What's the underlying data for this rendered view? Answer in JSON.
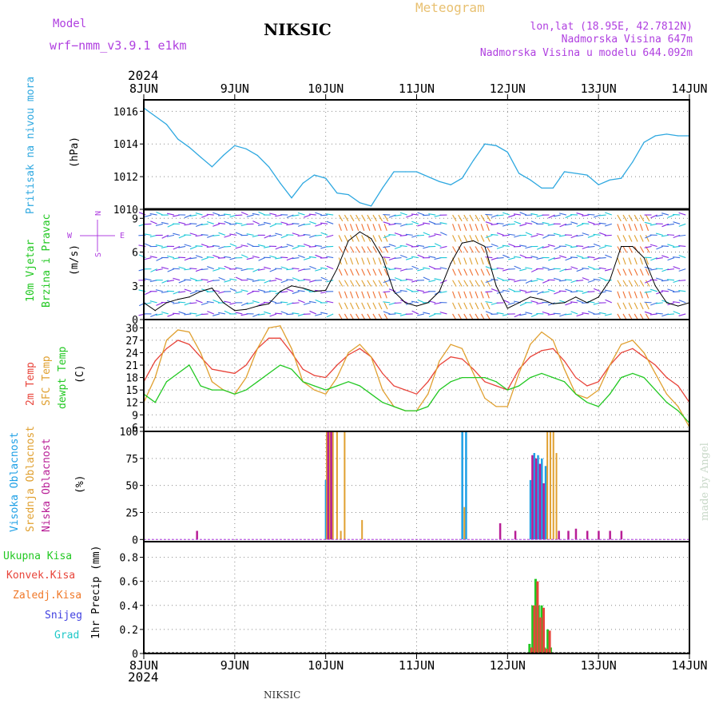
{
  "header": {
    "model_label": "Model",
    "model_name": "wrf−nmm_v3.9.1  e1km",
    "station": "NIKSIC",
    "meteogram": "Meteogram",
    "lonlat": "lon,lat (18.95E, 42.7812N)",
    "altitude": "Nadmorska Visina 647m",
    "model_altitude": "Nadmorska Visina u modelu 644.092m",
    "year_top": "2024",
    "year_bottom": "2024",
    "footer_station": "NIKSIC",
    "watermark": "made by Angel"
  },
  "colors": {
    "pressure": "#2ea8e0",
    "temp2m": "#e8443a",
    "sfc": "#e0a030",
    "dewpt": "#22c822",
    "high_cloud": "#1ea0e6",
    "mid_cloud": "#e0a030",
    "low_cloud": "#b81e96",
    "total_precip": "#22c822",
    "conv_precip": "#e8443a",
    "frz_precip": "#f07828",
    "snow": "#4040e0",
    "graupel": "#20c8c8",
    "wind_label": "#22c822",
    "wind_dir": "#b040e0"
  },
  "x_axis": {
    "start": "2024-06-08T00:00",
    "end": "2024-06-14T00:00",
    "labels": [
      "8JUN",
      "9JUN",
      "10JUN",
      "11JUN",
      "12JUN",
      "13JUN",
      "14JUN"
    ]
  },
  "panels": {
    "pressure": {
      "label_main": "Pritisak na nivou mora",
      "unit": "(hPa)",
      "ticks": [
        "1010",
        "1012",
        "1014",
        "1016"
      ]
    },
    "wind": {
      "label_a": "10m Vjetar",
      "label_b": "Brzina i Pravac",
      "unit": "(m/s)",
      "dir_n": "N",
      "dir_w": "W",
      "dir_e": "E",
      "dir_s": "S",
      "ticks": [
        "0",
        "3",
        "6",
        "9"
      ]
    },
    "temp": {
      "label_2m": "2m Temp",
      "label_sfc": "SFC Temp",
      "label_dew": "dewpt Temp",
      "unit": "(C)",
      "ticks": [
        "6",
        "9",
        "12",
        "15",
        "18",
        "21",
        "24",
        "27",
        "30"
      ]
    },
    "cloud": {
      "label_high": "Visoka Oblacnost",
      "label_mid": "Srednja Oblacnost",
      "label_low": "Niska Oblacnost",
      "unit": "(%)",
      "ticks": [
        "0",
        "25",
        "50",
        "75",
        "100"
      ]
    },
    "precip": {
      "label_total": "Ukupna Kisa",
      "label_conv": "Konvek.Kisa",
      "label_frz": "Zaledj.Kisa",
      "label_snow": "Snijeg",
      "label_grad": "Grad",
      "unit": "1hr Precip (mm)",
      "ticks": [
        "0",
        "0.2",
        "0.4",
        "0.6",
        "0.8"
      ]
    }
  },
  "chart_data": [
    {
      "type": "line",
      "ylabel": "Pritisak na nivou mora (hPa)",
      "ylim": [
        1010,
        1016.7
      ],
      "x_unit": "hours since 2024-06-08 00:00",
      "series": [
        {
          "name": "Pritisak na nivou mora",
          "x": [
            0,
            3,
            6,
            9,
            12,
            15,
            18,
            21,
            24,
            27,
            30,
            33,
            36,
            39,
            42,
            45,
            48,
            51,
            54,
            57,
            60,
            63,
            66,
            69,
            72,
            75,
            78,
            81,
            84,
            87,
            90,
            93,
            96,
            99,
            102,
            105,
            108,
            111,
            114,
            117,
            120,
            123,
            126,
            129,
            132,
            135,
            138,
            141,
            144
          ],
          "y": [
            1016.2,
            1015.7,
            1015.2,
            1014.3,
            1013.8,
            1013.2,
            1012.6,
            1013.3,
            1013.9,
            1013.7,
            1013.3,
            1012.6,
            1011.6,
            1010.7,
            1011.6,
            1012.1,
            1011.9,
            1011.0,
            1010.9,
            1010.4,
            1010.2,
            1011.3,
            1012.3,
            1012.3,
            1012.3,
            1012.0,
            1011.7,
            1011.5,
            1011.9,
            1013.0,
            1014.0,
            1013.9,
            1013.5,
            1012.2,
            1011.8,
            1011.3,
            1011.3,
            1012.3,
            1012.2,
            1012.1,
            1011.5,
            1011.8,
            1011.9,
            1012.9,
            1014.1,
            1014.5,
            1014.6,
            1014.5,
            1014.5
          ]
        }
      ]
    },
    {
      "type": "line",
      "ylabel": "10m Vjetar Brzina i Pravac (m/s)",
      "ylim": [
        0,
        9.8
      ],
      "x_unit": "hours since 2024-06-08 00:00",
      "series": [
        {
          "name": "10m Vjetar",
          "x": [
            0,
            3,
            6,
            9,
            12,
            15,
            18,
            21,
            24,
            27,
            30,
            33,
            36,
            39,
            42,
            45,
            48,
            51,
            54,
            57,
            60,
            63,
            66,
            69,
            72,
            75,
            78,
            81,
            84,
            87,
            90,
            93,
            96,
            99,
            102,
            105,
            108,
            111,
            114,
            117,
            120,
            123,
            126,
            129,
            132,
            135,
            138,
            141,
            144
          ],
          "y": [
            1.5,
            0.8,
            1.5,
            1.8,
            2.0,
            2.5,
            2.8,
            1.5,
            0.8,
            0.9,
            1.2,
            1.4,
            2.5,
            3.0,
            2.8,
            2.5,
            2.6,
            4.5,
            7.0,
            7.8,
            7.2,
            5.5,
            2.5,
            1.5,
            1.2,
            1.5,
            2.5,
            5.0,
            6.8,
            7.0,
            6.5,
            3.0,
            1.0,
            1.5,
            2.0,
            1.8,
            1.4,
            1.5,
            2.0,
            1.5,
            2.0,
            3.5,
            6.5,
            6.5,
            5.5,
            3.0,
            1.5,
            1.2,
            1.5
          ]
        }
      ]
    },
    {
      "type": "line",
      "ylabel": "Temp (C)",
      "ylim": [
        5,
        32
      ],
      "x_unit": "hours since 2024-06-08 00:00",
      "series": [
        {
          "name": "2m Temp",
          "x": [
            0,
            3,
            6,
            9,
            12,
            15,
            18,
            21,
            24,
            27,
            30,
            33,
            36,
            39,
            42,
            45,
            48,
            51,
            54,
            57,
            60,
            63,
            66,
            69,
            72,
            75,
            78,
            81,
            84,
            87,
            90,
            93,
            96,
            99,
            102,
            105,
            108,
            111,
            114,
            117,
            120,
            123,
            126,
            129,
            132,
            135,
            138,
            141,
            144
          ],
          "y": [
            17,
            22,
            25,
            27,
            26,
            23,
            20,
            19.5,
            19,
            21,
            25,
            27.5,
            27.5,
            24,
            20,
            18.5,
            18,
            21,
            23.5,
            25,
            23,
            19,
            16,
            15,
            14,
            17,
            21,
            23,
            22.5,
            20,
            17,
            16,
            15,
            20,
            23,
            24.5,
            25,
            22,
            18,
            16,
            17,
            21,
            24,
            25,
            23,
            21,
            18,
            16,
            12
          ]
        },
        {
          "name": "SFC Temp",
          "x": [
            0,
            3,
            6,
            9,
            12,
            15,
            18,
            21,
            24,
            27,
            30,
            33,
            36,
            39,
            42,
            45,
            48,
            51,
            54,
            57,
            60,
            63,
            66,
            69,
            72,
            75,
            78,
            81,
            84,
            87,
            90,
            93,
            96,
            99,
            102,
            105,
            108,
            111,
            114,
            117,
            120,
            123,
            126,
            129,
            132,
            135,
            138,
            141,
            144
          ],
          "y": [
            12,
            18,
            27,
            29.5,
            29,
            24,
            17,
            15,
            14,
            18,
            25,
            30,
            30.5,
            25,
            17,
            15,
            14,
            18,
            24,
            26,
            23,
            15,
            11,
            10,
            10,
            14,
            22,
            26,
            25,
            19,
            13,
            11,
            11,
            19,
            26,
            29,
            27,
            20,
            14,
            13,
            15,
            21,
            26,
            27,
            24,
            19,
            14,
            11,
            6
          ]
        },
        {
          "name": "dewpt Temp",
          "x": [
            0,
            3,
            6,
            9,
            12,
            15,
            18,
            21,
            24,
            27,
            30,
            33,
            36,
            39,
            42,
            45,
            48,
            51,
            54,
            57,
            60,
            63,
            66,
            69,
            72,
            75,
            78,
            81,
            84,
            87,
            90,
            93,
            96,
            99,
            102,
            105,
            108,
            111,
            114,
            117,
            120,
            123,
            126,
            129,
            132,
            135,
            138,
            141,
            144
          ],
          "y": [
            14,
            12,
            17,
            19,
            21,
            16,
            15,
            15,
            14,
            15,
            17,
            19,
            21,
            20,
            17,
            16,
            15,
            16,
            17,
            16,
            14,
            12,
            11,
            10,
            10,
            11,
            15,
            17,
            18,
            18,
            18,
            17,
            15,
            16,
            18,
            19,
            18,
            17,
            14,
            12,
            11,
            14,
            18,
            19,
            18,
            15,
            12,
            10,
            7
          ]
        }
      ]
    },
    {
      "type": "bar",
      "ylabel": "Oblacnost (%)",
      "ylim": [
        -2,
        100
      ],
      "x_unit": "hours since 2024-06-08 00:00",
      "series": [
        {
          "name": "Visoka Oblacnost",
          "x": [
            48,
            48.8,
            49.6,
            84,
            85,
            102,
            103,
            104,
            105,
            106
          ],
          "y": [
            55,
            100,
            100,
            100,
            100,
            55,
            80,
            78,
            75,
            68
          ]
        },
        {
          "name": "Srednja Oblacnost",
          "x": [
            48.3,
            49.1,
            49.9,
            51,
            52,
            53,
            57.6,
            84.6,
            106.5,
            107.3,
            108.1,
            108.9
          ],
          "y": [
            100,
            100,
            100,
            100,
            8,
            100,
            18,
            30,
            100,
            100,
            100,
            80
          ]
        },
        {
          "name": "Niska Oblacnost",
          "x": [
            14,
            48.6,
            49.4,
            102.5,
            103.5,
            104.5,
            105.5,
            109.5,
            94,
            98,
            112,
            114,
            117,
            120,
            123,
            126
          ],
          "y": [
            8,
            100,
            100,
            78,
            75,
            70,
            52,
            8,
            15,
            8,
            8,
            10,
            8,
            8,
            8,
            8
          ]
        }
      ]
    },
    {
      "type": "bar",
      "ylabel": "1hr Precip (mm)",
      "ylim": [
        0,
        0.93
      ],
      "x_unit": "hours since 2024-06-08 00:00",
      "series": [
        {
          "name": "Ukupna Kisa",
          "x": [
            101.8,
            102.6,
            103.4,
            104.2,
            105.0,
            105.8,
            106.6,
            107.4
          ],
          "y": [
            0.08,
            0.4,
            0.62,
            0.4,
            0.4,
            0.05,
            0.2,
            0.05
          ]
        },
        {
          "name": "Konvek.Kisa",
          "x": [
            102.0,
            102.8,
            103.6,
            104.4,
            105.2,
            106.0,
            106.8
          ],
          "y": [
            0.05,
            0.4,
            0.6,
            0.3,
            0.38,
            0.04,
            0.19
          ]
        }
      ]
    }
  ]
}
